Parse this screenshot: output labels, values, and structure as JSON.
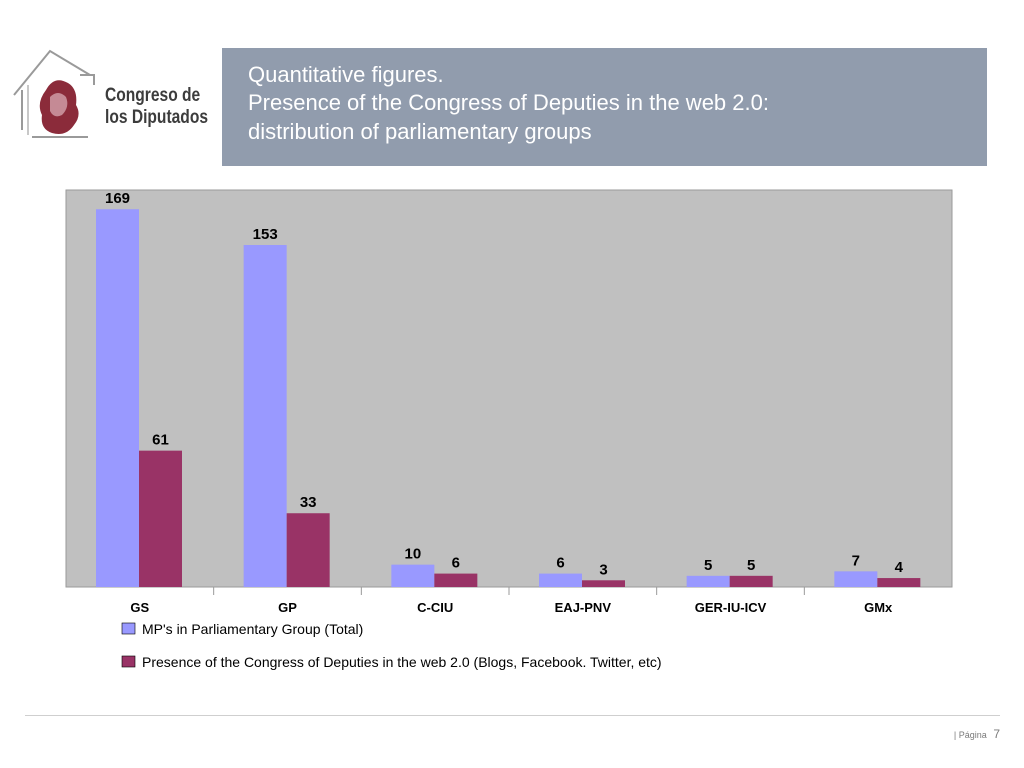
{
  "logo": {
    "line1": "Congreso de",
    "line2": "los Diputados",
    "icon": "congress-lion-emblem-icon"
  },
  "title": {
    "line1": "Quantitative figures.",
    "line2": "Presence of the Congress of Deputies in the web 2.0:",
    "line3": "distribution of parliamentary groups"
  },
  "chart_data": {
    "type": "bar",
    "categories": [
      "GS",
      "GP",
      "C-CIU",
      "EAJ-PNV",
      "GER-IU-ICV",
      "GMx"
    ],
    "series": [
      {
        "name": "MP's in Parliamentary Group (Total)",
        "values": [
          169,
          153,
          10,
          6,
          5,
          7
        ],
        "color": "#9999ff"
      },
      {
        "name": "Presence of the Congress of Deputies in the web 2.0 (Blogs, Facebook. Twitter, etc)",
        "values": [
          61,
          33,
          6,
          3,
          5,
          4
        ],
        "color": "#993366"
      }
    ],
    "ylim": [
      0,
      170
    ],
    "legend": "bottom",
    "plot_background": "#c0c0c0"
  },
  "footer": {
    "label": "| Página",
    "page": "7"
  }
}
